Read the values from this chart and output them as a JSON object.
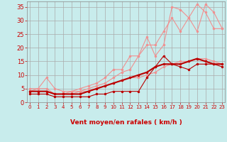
{
  "bg_color": "#c8ecec",
  "grid_color": "#aaaaaa",
  "xlabel": "Vent moyen/en rafales ( km/h )",
  "xlabel_color": "#cc0000",
  "tick_color": "#cc0000",
  "xlim": [
    -0.3,
    23.3
  ],
  "ylim": [
    0,
    37
  ],
  "xticks": [
    0,
    1,
    2,
    3,
    4,
    5,
    6,
    7,
    8,
    9,
    10,
    11,
    12,
    13,
    14,
    15,
    16,
    17,
    18,
    19,
    20,
    21,
    22,
    23
  ],
  "yticks": [
    0,
    5,
    10,
    15,
    20,
    25,
    30,
    35
  ],
  "light_color": "#f09090",
  "dark_color": "#bb0000",
  "lp1_x": [
    0,
    1,
    2,
    3,
    4,
    5,
    6,
    7,
    8,
    9,
    10,
    11,
    12,
    13,
    14,
    15,
    16,
    17,
    18,
    19,
    20,
    21,
    22,
    23
  ],
  "lp1_y": [
    4,
    5,
    9,
    5,
    4,
    4,
    5,
    6,
    7,
    9,
    12,
    12,
    17,
    17,
    21,
    21,
    26,
    31,
    26,
    31,
    36,
    33,
    27,
    27
  ],
  "lp2_x": [
    0,
    1,
    2,
    3,
    4,
    5,
    6,
    7,
    8,
    9,
    10,
    11,
    12,
    13,
    14,
    15,
    16,
    17,
    18,
    19,
    20,
    21,
    22,
    23
  ],
  "lp2_y": [
    5,
    5,
    5,
    3,
    3,
    3,
    4,
    5,
    6,
    7,
    9,
    11,
    12,
    17,
    24,
    17,
    21,
    35,
    34,
    31,
    26,
    36,
    33,
    27
  ],
  "lp3_x": [
    0,
    1,
    2,
    3,
    4,
    5,
    6,
    7,
    8,
    9,
    10,
    11,
    12,
    13,
    14,
    15,
    16,
    17,
    18,
    19,
    20,
    21,
    22,
    23
  ],
  "lp3_y": [
    4,
    4,
    4,
    3,
    3,
    4,
    4,
    4,
    5,
    6,
    7,
    8,
    9,
    9,
    10,
    11,
    13,
    14,
    15,
    15,
    16,
    16,
    15,
    14
  ],
  "dr1_x": [
    0,
    1,
    2,
    3,
    4,
    5,
    6,
    7,
    8,
    9,
    10,
    11,
    12,
    13,
    14,
    15,
    16,
    17,
    18,
    19,
    20,
    21,
    22,
    23
  ],
  "dr1_y": [
    4,
    4,
    4,
    3,
    3,
    3,
    3,
    4,
    5,
    6,
    7,
    8,
    9,
    10,
    11,
    13,
    14,
    14,
    14,
    15,
    16,
    15,
    14,
    14
  ],
  "dr2_x": [
    0,
    1,
    2,
    3,
    4,
    5,
    6,
    7,
    8,
    9,
    10,
    11,
    12,
    13,
    14,
    15,
    16,
    17,
    18,
    19,
    20,
    21,
    22,
    23
  ],
  "dr2_y": [
    3,
    3,
    3,
    2,
    2,
    2,
    2,
    2,
    3,
    3,
    4,
    4,
    4,
    4,
    9,
    13,
    17,
    14,
    13,
    12,
    14,
    14,
    14,
    13
  ],
  "arrows": [
    "→",
    "→",
    "↓",
    "↑",
    "↓",
    "↘",
    "↘",
    "↓",
    "→",
    "↓",
    "↙",
    "←",
    "←",
    "↙",
    "↙",
    "↙",
    "↙",
    "↙",
    "←",
    "←",
    "↙",
    "↙",
    "↙",
    "↙"
  ]
}
